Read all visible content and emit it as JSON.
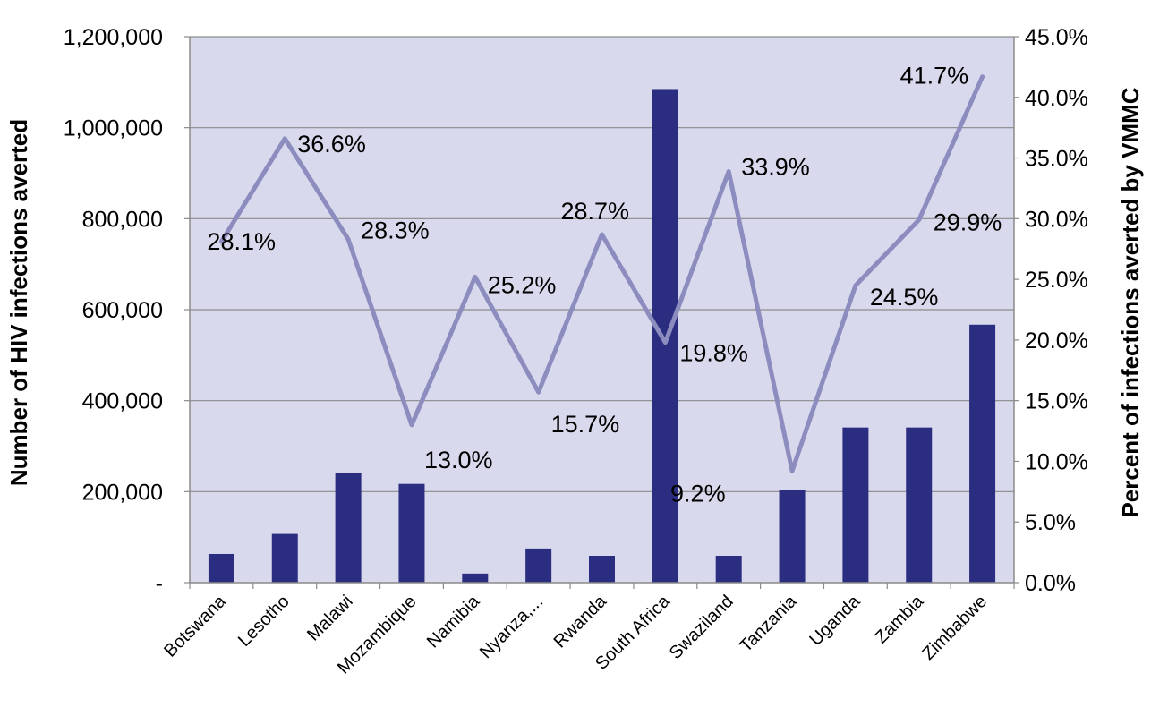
{
  "chart_data": {
    "type": "bar",
    "categories": [
      "Botswana",
      "Lesotho",
      "Malawi",
      "Mozambique",
      "Namibia",
      "Nyanza,...",
      "Rwanda",
      "South Africa",
      "Swaziland",
      "Tanzania",
      "Uganda",
      "Zambia",
      "Zimbabwe"
    ],
    "series": [
      {
        "type": "bar",
        "axis": "left",
        "color": "#2b2d80",
        "values": [
          63000,
          107000,
          242000,
          217000,
          20000,
          75000,
          59000,
          1085000,
          59000,
          204000,
          341000,
          341000,
          567000
        ]
      },
      {
        "type": "line",
        "axis": "right",
        "color": "#8c8cbf",
        "values": [
          28.1,
          36.6,
          28.3,
          13.0,
          25.2,
          15.7,
          28.7,
          19.8,
          33.9,
          9.2,
          24.5,
          29.9,
          41.7
        ],
        "data_labels": [
          "28.1%",
          "36.6%",
          "28.3%",
          "13.0%",
          "25.2%",
          "15.7%",
          "28.7%",
          "19.8%",
          "33.9%",
          "9.2%",
          "24.5%",
          "29.9%",
          "41.7%"
        ]
      }
    ],
    "ylabel": "Number of HIV infections averted",
    "ylabel_right": "Percent of infections averted by VMMC",
    "ylim": [
      0,
      1200000
    ],
    "ylim_right": [
      0,
      45
    ],
    "yticks": [
      "-",
      "200,000",
      "400,000",
      "600,000",
      "800,000",
      "1,000,000",
      "1,200,000"
    ],
    "yticks_right": [
      "0.0%",
      "5.0%",
      "10.0%",
      "15.0%",
      "20.0%",
      "25.0%",
      "30.0%",
      "35.0%",
      "40.0%",
      "45.0%"
    ],
    "plot_background": "#d9d9ed",
    "grid": true,
    "legend": "none"
  }
}
